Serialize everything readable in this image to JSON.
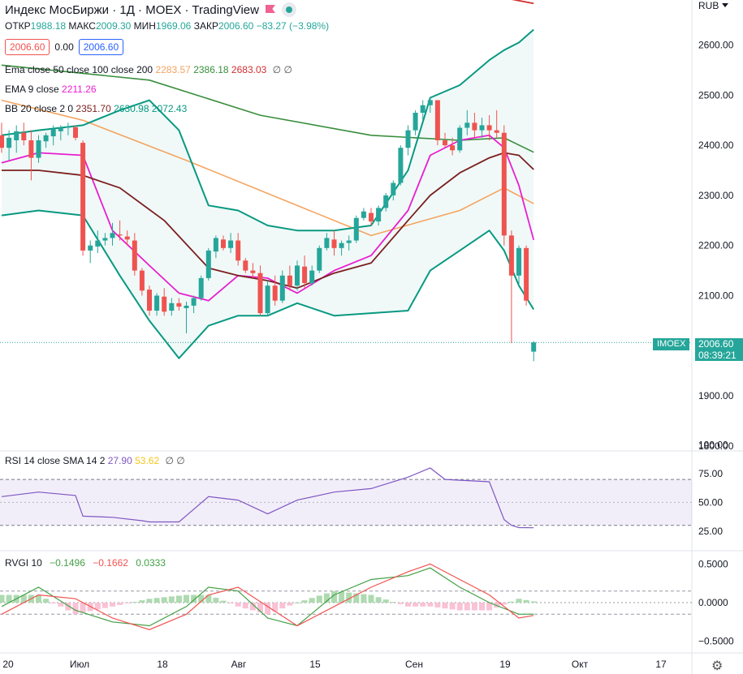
{
  "header": {
    "title": "Индекс МосБиржи · 1Д · MOEX · TradingView",
    "ohlc": [
      {
        "k": "ОТКР",
        "v": "1988.18"
      },
      {
        "k": "МАКС",
        "v": "2009.30"
      },
      {
        "k": "МИН",
        "v": "1969.06"
      },
      {
        "k": "ЗАКР",
        "v": "2006.60"
      },
      {
        "k": "",
        "v": "−83.27 (−3.98%)"
      }
    ],
    "bid": "2006.60",
    "spread": "0.00",
    "ask": "2006.60"
  },
  "indicators": {
    "ema_label": "Ema close 50 close 100 close 200",
    "ema_values": [
      "2283.57",
      "2386.18",
      "2683.03"
    ],
    "ema9_label": "EMA 9 close",
    "ema9_value": "2211.26",
    "bb_label": "BB 20 close 2 0",
    "bb_values": [
      "2351.70",
      "2630.98",
      "2072.43"
    ],
    "rsi_label": "RSI 14 close SMA 14 2",
    "rsi_values": [
      "27.90",
      "53.62"
    ],
    "rvgi_label": "RVGI 10",
    "rvgi_values": [
      "−0.1496",
      "−0.1662",
      "0.0333"
    ],
    "symbols": "∅ ∅"
  },
  "axis": {
    "currency": "RUB",
    "symbol_tag": "IMOEX",
    "last_price": "2006.60",
    "countdown": "08:39:21"
  },
  "colors": {
    "up": "#26a69a",
    "down": "#ef5350",
    "ema50": "#f4a460",
    "ema100": "#388e3c",
    "ema200": "#d32f2f",
    "ema9": "#e91ecf",
    "bb_band": "#089981",
    "bb_basis": "#7b1f1f",
    "rsi": "#7e57c2",
    "rsi_sma": "#f5c518",
    "rvgi_line": "#43a047",
    "rvgi_signal": "#ef5350"
  },
  "chart_data": [
    {
      "type": "candlestick",
      "title": "Индекс МосБиржи · 1Д · MOEX",
      "ylim": [
        1790,
        2690
      ],
      "yticks": [
        1800,
        1900,
        2000,
        2100,
        2200,
        2300,
        2400,
        2500,
        2600
      ],
      "ytick_labels": [
        "1800.00",
        "1900.00",
        "2000.00",
        "2100.00",
        "2200.00",
        "2300.00",
        "2400.00",
        "2500.00",
        "2600.00"
      ],
      "xticks": [
        "20",
        "Июл",
        "18",
        "Авг",
        "15",
        "Сен",
        "19",
        "Окт",
        "17"
      ],
      "ohlc": [
        [
          2420,
          2445,
          2385,
          2395
        ],
        [
          2395,
          2430,
          2370,
          2415
        ],
        [
          2410,
          2440,
          2385,
          2428
        ],
        [
          2425,
          2445,
          2400,
          2410
        ],
        [
          2410,
          2430,
          2330,
          2375
        ],
        [
          2375,
          2420,
          2365,
          2410
        ],
        [
          2408,
          2425,
          2395,
          2420
        ],
        [
          2418,
          2440,
          2400,
          2432
        ],
        [
          2428,
          2440,
          2410,
          2435
        ],
        [
          2435,
          2445,
          2420,
          2438
        ],
        [
          2436,
          2440,
          2410,
          2415
        ],
        [
          2405,
          2410,
          2180,
          2190
        ],
        [
          2190,
          2210,
          2165,
          2200
        ],
        [
          2198,
          2230,
          2185,
          2210
        ],
        [
          2210,
          2225,
          2200,
          2215
        ],
        [
          2215,
          2245,
          2200,
          2225
        ],
        [
          2222,
          2250,
          2210,
          2220
        ],
        [
          2218,
          2230,
          2200,
          2212
        ],
        [
          2210,
          2225,
          2140,
          2150
        ],
        [
          2150,
          2155,
          2100,
          2110
        ],
        [
          2112,
          2120,
          2060,
          2070
        ],
        [
          2070,
          2105,
          2060,
          2100
        ],
        [
          2098,
          2115,
          2060,
          2068
        ],
        [
          2070,
          2095,
          2060,
          2085
        ],
        [
          2085,
          2095,
          2070,
          2078
        ],
        [
          2075,
          2088,
          2025,
          2080
        ],
        [
          2080,
          2100,
          2065,
          2095
        ],
        [
          2095,
          2140,
          2090,
          2135
        ],
        [
          2135,
          2195,
          2130,
          2190
        ],
        [
          2188,
          2220,
          2175,
          2215
        ],
        [
          2212,
          2220,
          2190,
          2195
        ],
        [
          2195,
          2225,
          2185,
          2210
        ],
        [
          2210,
          2225,
          2160,
          2170
        ],
        [
          2170,
          2175,
          2145,
          2150
        ],
        [
          2150,
          2165,
          2135,
          2145
        ],
        [
          2145,
          2160,
          2060,
          2065
        ],
        [
          2065,
          2130,
          2060,
          2120
        ],
        [
          2120,
          2140,
          2080,
          2090
        ],
        [
          2090,
          2150,
          2085,
          2140
        ],
        [
          2140,
          2160,
          2110,
          2120
        ],
        [
          2120,
          2170,
          2110,
          2160
        ],
        [
          2158,
          2180,
          2115,
          2125
        ],
        [
          2125,
          2160,
          2120,
          2150
        ],
        [
          2150,
          2200,
          2145,
          2195
        ],
        [
          2195,
          2225,
          2190,
          2215
        ],
        [
          2212,
          2230,
          2180,
          2195
        ],
        [
          2195,
          2210,
          2180,
          2205
        ],
        [
          2205,
          2220,
          2190,
          2210
        ],
        [
          2210,
          2260,
          2205,
          2255
        ],
        [
          2255,
          2275,
          2250,
          2268
        ],
        [
          2265,
          2275,
          2240,
          2248
        ],
        [
          2248,
          2280,
          2240,
          2275
        ],
        [
          2275,
          2305,
          2268,
          2300
        ],
        [
          2300,
          2330,
          2290,
          2325
        ],
        [
          2325,
          2400,
          2320,
          2395
        ],
        [
          2395,
          2440,
          2380,
          2430
        ],
        [
          2430,
          2470,
          2420,
          2465
        ],
        [
          2465,
          2490,
          2450,
          2480
        ],
        [
          2480,
          2495,
          2465,
          2490
        ],
        [
          2490,
          2490,
          2400,
          2410
        ],
        [
          2410,
          2425,
          2395,
          2400
        ],
        [
          2400,
          2415,
          2380,
          2390
        ],
        [
          2390,
          2440,
          2385,
          2435
        ],
        [
          2435,
          2470,
          2420,
          2445
        ],
        [
          2445,
          2465,
          2415,
          2430
        ],
        [
          2430,
          2455,
          2415,
          2440
        ],
        [
          2440,
          2460,
          2410,
          2430
        ],
        [
          2430,
          2470,
          2415,
          2425
        ],
        [
          2425,
          2440,
          2200,
          2220
        ],
        [
          2220,
          2230,
          2005,
          2140
        ],
        [
          2140,
          2200,
          2120,
          2195
        ],
        [
          2195,
          2200,
          2080,
          2090
        ],
        [
          1988.18,
          2009.3,
          1969.06,
          2006.6
        ]
      ],
      "series": [
        {
          "name": "Ema close 50 close 100 close 200 (50)",
          "x": [
            0,
            11,
            25,
            50,
            62,
            68,
            72
          ],
          "values": [
            2490,
            2450,
            2370,
            2220,
            2270,
            2315,
            2283.57
          ]
        },
        {
          "name": "Ema close 50 close 100 close 200 (100)",
          "x": [
            0,
            20,
            35,
            50,
            62,
            68,
            72
          ],
          "values": [
            2560,
            2530,
            2460,
            2420,
            2410,
            2415,
            2386.18
          ]
        },
        {
          "name": "Ema close 50 close 100 close 200 (200)",
          "x": [
            60,
            66,
            72
          ],
          "values": [
            2705,
            2700,
            2683.03
          ]
        },
        {
          "name": "EMA 9 close",
          "x": [
            0,
            5,
            11,
            15,
            20,
            24,
            28,
            32,
            36,
            40,
            45,
            50,
            55,
            58,
            62,
            66,
            68,
            70,
            72
          ],
          "values": [
            2365,
            2385,
            2380,
            2230,
            2160,
            2105,
            2090,
            2140,
            2135,
            2105,
            2150,
            2180,
            2270,
            2380,
            2410,
            2420,
            2395,
            2320,
            2211.26
          ]
        },
        {
          "name": "BB basis",
          "x": [
            0,
            5,
            11,
            16,
            22,
            28,
            32,
            36,
            40,
            45,
            50,
            55,
            58,
            62,
            66,
            68,
            70,
            72
          ],
          "values": [
            2350,
            2350,
            2340,
            2315,
            2250,
            2155,
            2140,
            2130,
            2115,
            2145,
            2165,
            2250,
            2300,
            2345,
            2375,
            2385,
            2380,
            2351.7
          ]
        },
        {
          "name": "BB upper",
          "x": [
            0,
            5,
            11,
            16,
            20,
            24,
            28,
            32,
            36,
            40,
            45,
            50,
            55,
            58,
            62,
            66,
            68,
            70,
            72
          ],
          "values": [
            2420,
            2430,
            2440,
            2470,
            2490,
            2430,
            2280,
            2270,
            2240,
            2230,
            2230,
            2240,
            2350,
            2495,
            2520,
            2570,
            2590,
            2605,
            2630.98
          ]
        },
        {
          "name": "BB lower",
          "x": [
            0,
            5,
            11,
            16,
            20,
            24,
            28,
            32,
            36,
            40,
            45,
            50,
            55,
            58,
            62,
            66,
            68,
            70,
            72
          ],
          "values": [
            2260,
            2270,
            2260,
            2140,
            2050,
            1975,
            2040,
            2060,
            2060,
            2085,
            2060,
            2065,
            2070,
            2150,
            2190,
            2230,
            2190,
            2120,
            2072.43
          ]
        }
      ]
    },
    {
      "type": "line",
      "title": "RSI 14 close SMA 14 2",
      "ylim": [
        10,
        92
      ],
      "yticks": [
        25,
        50,
        75,
        100
      ],
      "ytick_labels": [
        "25.00",
        "50.00",
        "75.00",
        "100.00"
      ],
      "bands": [
        30,
        70
      ],
      "series": [
        {
          "name": "RSI",
          "x": [
            0,
            5,
            10,
            11,
            15,
            19,
            20,
            24,
            28,
            32,
            36,
            40,
            45,
            50,
            55,
            58,
            60,
            66,
            68,
            69,
            70,
            72
          ],
          "values": [
            55,
            59,
            56,
            38,
            37,
            34,
            33,
            33,
            55,
            52,
            40,
            52,
            59,
            62,
            72,
            80,
            70,
            68,
            35,
            30,
            28,
            27.9
          ]
        }
      ]
    },
    {
      "type": "line",
      "title": "RVGI 10",
      "ylim": [
        -0.62,
        0.62
      ],
      "yticks": [
        -0.5,
        0.0,
        0.5
      ],
      "ytick_labels": [
        "−0.5000",
        "0.0000",
        "0.5000"
      ],
      "bands": [
        -0.15,
        0.15
      ],
      "series": [
        {
          "name": "RVGI",
          "x": [
            0,
            5,
            10,
            15,
            20,
            25,
            28,
            32,
            36,
            40,
            45,
            50,
            55,
            58,
            62,
            66,
            70,
            72
          ],
          "values": [
            -0.05,
            0.2,
            -0.1,
            -0.25,
            -0.3,
            -0.05,
            0.2,
            0.15,
            -0.2,
            -0.3,
            0.1,
            0.3,
            0.35,
            0.45,
            0.2,
            0.0,
            -0.15,
            -0.1496
          ]
        },
        {
          "name": "Signal",
          "x": [
            0,
            5,
            10,
            15,
            20,
            25,
            28,
            32,
            36,
            40,
            45,
            50,
            55,
            58,
            62,
            66,
            70,
            72
          ],
          "values": [
            -0.15,
            0.1,
            0.05,
            -0.2,
            -0.35,
            -0.15,
            0.1,
            0.2,
            -0.05,
            -0.3,
            -0.05,
            0.2,
            0.4,
            0.5,
            0.3,
            0.1,
            -0.2,
            -0.1662
          ]
        },
        {
          "name": "Histogram",
          "x": [
            0,
            5,
            10,
            15,
            20,
            25,
            28,
            32,
            36,
            40,
            45,
            50,
            55,
            58,
            62,
            66,
            70,
            72
          ],
          "values": [
            0.1,
            0.1,
            -0.15,
            -0.05,
            0.05,
            0.1,
            0.1,
            -0.05,
            -0.15,
            0.0,
            0.15,
            0.1,
            -0.05,
            -0.05,
            -0.1,
            -0.1,
            0.05,
            0.0333
          ]
        }
      ]
    }
  ]
}
